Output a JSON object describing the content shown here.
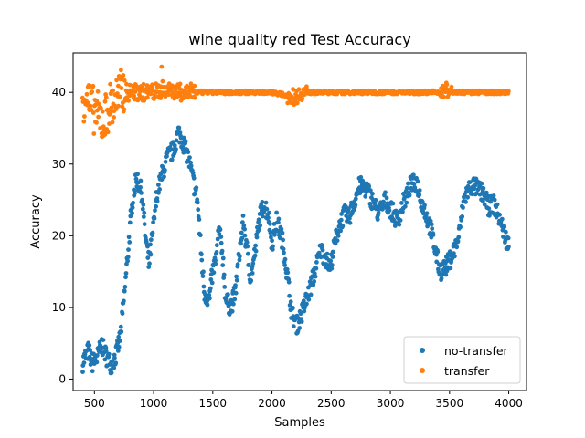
{
  "chart_data": {
    "type": "scatter",
    "title": "wine quality red Test Accuracy",
    "xlabel": "Samples",
    "ylabel": "Accuracy",
    "xlim": [
      320,
      4150
    ],
    "ylim": [
      -1.6,
      45.5
    ],
    "xticks": [
      500,
      1000,
      1500,
      2000,
      2500,
      3000,
      3500,
      4000
    ],
    "yticks": [
      0,
      10,
      20,
      30,
      40
    ],
    "grid": false,
    "legend": "lower-right",
    "series": [
      {
        "name": "no-transfer",
        "color": "#1f77b4",
        "anchors": [
          [
            400,
            2.3
          ],
          [
            450,
            4.0
          ],
          [
            480,
            2.2
          ],
          [
            520,
            2.8
          ],
          [
            560,
            4.8
          ],
          [
            600,
            3.2
          ],
          [
            640,
            2.0
          ],
          [
            680,
            3.2
          ],
          [
            720,
            6.0
          ],
          [
            760,
            13.0
          ],
          [
            800,
            21.0
          ],
          [
            830,
            26.0
          ],
          [
            860,
            28.0
          ],
          [
            900,
            26.0
          ],
          [
            930,
            20.0
          ],
          [
            960,
            16.0
          ],
          [
            990,
            20.0
          ],
          [
            1030,
            26.0
          ],
          [
            1080,
            29.0
          ],
          [
            1120,
            31.0
          ],
          [
            1170,
            32.0
          ],
          [
            1210,
            34.5
          ],
          [
            1250,
            33.0
          ],
          [
            1290,
            31.0
          ],
          [
            1330,
            28.0
          ],
          [
            1370,
            25.0
          ],
          [
            1400,
            18.0
          ],
          [
            1430,
            12.0
          ],
          [
            1470,
            11.0
          ],
          [
            1500,
            15.0
          ],
          [
            1530,
            17.0
          ],
          [
            1550,
            21.0
          ],
          [
            1580,
            18.0
          ],
          [
            1610,
            11.0
          ],
          [
            1650,
            10.0
          ],
          [
            1690,
            12.0
          ],
          [
            1720,
            17.0
          ],
          [
            1760,
            22.0
          ],
          [
            1780,
            19.0
          ],
          [
            1820,
            14.0
          ],
          [
            1860,
            18.0
          ],
          [
            1890,
            22.0
          ],
          [
            1930,
            24.5
          ],
          [
            1970,
            23.0
          ],
          [
            2000,
            19.0
          ],
          [
            2040,
            22.0
          ],
          [
            2080,
            20.0
          ],
          [
            2110,
            17.0
          ],
          [
            2140,
            13.0
          ],
          [
            2170,
            9.0
          ],
          [
            2210,
            7.5
          ],
          [
            2250,
            9.0
          ],
          [
            2290,
            11.0
          ],
          [
            2330,
            13.0
          ],
          [
            2370,
            15.5
          ],
          [
            2410,
            18.0
          ],
          [
            2450,
            17.0
          ],
          [
            2490,
            15.5
          ],
          [
            2530,
            19.0
          ],
          [
            2570,
            21.5
          ],
          [
            2610,
            23.0
          ],
          [
            2650,
            22.5
          ],
          [
            2700,
            25.0
          ],
          [
            2740,
            27.0
          ],
          [
            2800,
            26.5
          ],
          [
            2860,
            24.5
          ],
          [
            2900,
            23.0
          ],
          [
            2960,
            25.0
          ],
          [
            3010,
            23.5
          ],
          [
            3060,
            22.0
          ],
          [
            3120,
            25.0
          ],
          [
            3170,
            27.0
          ],
          [
            3220,
            27.5
          ],
          [
            3260,
            25.0
          ],
          [
            3300,
            23.0
          ],
          [
            3340,
            21.0
          ],
          [
            3380,
            18.0
          ],
          [
            3420,
            15.0
          ],
          [
            3460,
            15.5
          ],
          [
            3500,
            16.5
          ],
          [
            3540,
            18.0
          ],
          [
            3580,
            20.0
          ],
          [
            3620,
            25.0
          ],
          [
            3660,
            26.5
          ],
          [
            3700,
            27.0
          ],
          [
            3740,
            26.5
          ],
          [
            3780,
            26.0
          ],
          [
            3830,
            24.0
          ],
          [
            3870,
            24.5
          ],
          [
            3920,
            22.5
          ],
          [
            3960,
            20.5
          ],
          [
            4000,
            18.5
          ]
        ]
      },
      {
        "name": "transfer",
        "color": "#ff7f0e",
        "anchors": [
          [
            400,
            38.5
          ],
          [
            430,
            40.5
          ],
          [
            460,
            38.0
          ],
          [
            500,
            37.5
          ],
          [
            540,
            36.5
          ],
          [
            580,
            36.0
          ],
          [
            620,
            38.0
          ],
          [
            660,
            38.5
          ],
          [
            700,
            39.5
          ],
          [
            740,
            40.0
          ],
          [
            780,
            40.0
          ],
          [
            900,
            40.0
          ],
          [
            1000,
            40.0
          ],
          [
            1100,
            40.5
          ],
          [
            1200,
            40.0
          ],
          [
            1300,
            40.0
          ],
          [
            1600,
            40.0
          ],
          [
            2000,
            40.0
          ],
          [
            2150,
            39.5
          ],
          [
            2200,
            39.3
          ],
          [
            2250,
            40.0
          ],
          [
            2500,
            40.0
          ],
          [
            3000,
            40.0
          ],
          [
            3440,
            40.0
          ],
          [
            3470,
            40.5
          ],
          [
            3500,
            40.0
          ],
          [
            4000,
            40.0
          ]
        ]
      }
    ]
  }
}
